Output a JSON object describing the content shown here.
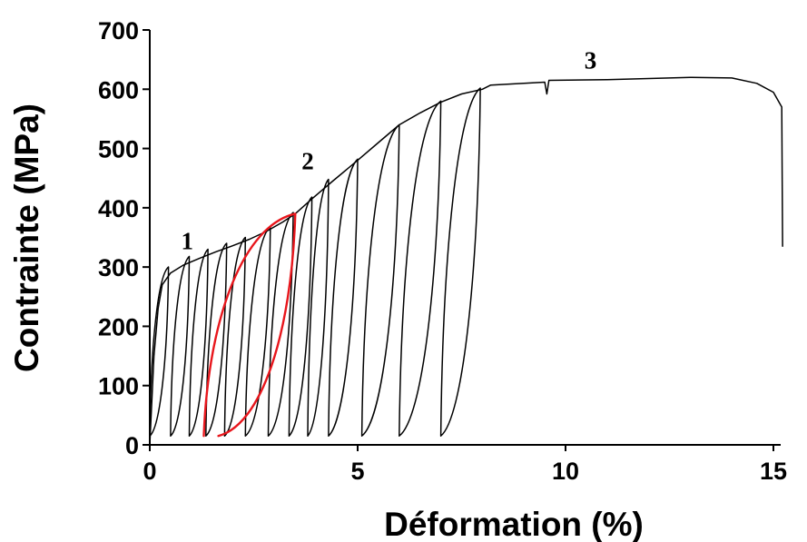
{
  "chart_data": {
    "type": "line",
    "xlabel": "Déformation (%)",
    "ylabel": "Contrainte (MPa)",
    "xlim": [
      0,
      15.2
    ],
    "ylim": [
      0,
      700
    ],
    "x_ticks": [
      0,
      5,
      10,
      15
    ],
    "y_ticks": [
      0,
      100,
      200,
      300,
      400,
      500,
      600,
      700
    ],
    "grid": false,
    "annotations": [
      {
        "text": "1",
        "x": 0.9,
        "y": 330
      },
      {
        "text": "2",
        "x": 3.8,
        "y": 465
      },
      {
        "text": "3",
        "x": 10.6,
        "y": 635
      }
    ],
    "envelope": [
      [
        0,
        0
      ],
      [
        0.1,
        150
      ],
      [
        0.2,
        230
      ],
      [
        0.3,
        270
      ],
      [
        0.5,
        290
      ],
      [
        0.8,
        303
      ],
      [
        1.2,
        315
      ],
      [
        1.6,
        326
      ],
      [
        2.0,
        336
      ],
      [
        2.4,
        347
      ],
      [
        2.8,
        360
      ],
      [
        3.2,
        376
      ],
      [
        3.5,
        390
      ],
      [
        3.9,
        415
      ],
      [
        4.4,
        445
      ],
      [
        5.0,
        480
      ],
      [
        5.5,
        510
      ],
      [
        6.0,
        540
      ],
      [
        6.5,
        560
      ],
      [
        7.0,
        578
      ],
      [
        7.5,
        592
      ],
      [
        8.0,
        600
      ],
      [
        8.2,
        607
      ],
      [
        9.5,
        612
      ],
      [
        9.55,
        592
      ],
      [
        9.6,
        615
      ],
      [
        11.0,
        616
      ],
      [
        13.0,
        620
      ],
      [
        14.0,
        619
      ],
      [
        14.6,
        610
      ],
      [
        15.0,
        595
      ],
      [
        15.2,
        570
      ],
      [
        15.22,
        335
      ]
    ],
    "loading_cycles": [
      {
        "peak": [
          0.45,
          300
        ],
        "min": [
          0.0,
          15
        ]
      },
      {
        "peak": [
          0.95,
          318
        ],
        "min": [
          0.5,
          15
        ]
      },
      {
        "peak": [
          1.4,
          330
        ],
        "min": [
          0.95,
          15
        ]
      },
      {
        "peak": [
          1.85,
          340
        ],
        "min": [
          1.35,
          15
        ]
      },
      {
        "peak": [
          2.3,
          350
        ],
        "min": [
          1.8,
          15
        ]
      },
      {
        "peak": [
          2.9,
          368
        ],
        "min": [
          2.3,
          15
        ]
      },
      {
        "peak": [
          3.45,
          392
        ],
        "min": [
          2.85,
          15
        ]
      },
      {
        "peak": [
          3.9,
          418
        ],
        "min": [
          3.35,
          15
        ]
      },
      {
        "peak": [
          4.3,
          448
        ],
        "min": [
          3.8,
          15
        ]
      },
      {
        "peak": [
          5.0,
          482
        ],
        "min": [
          4.3,
          15
        ]
      },
      {
        "peak": [
          6.0,
          540
        ],
        "min": [
          5.1,
          15
        ]
      },
      {
        "peak": [
          7.0,
          580
        ],
        "min": [
          6.0,
          15
        ]
      },
      {
        "peak": [
          7.95,
          602
        ],
        "min": [
          7.0,
          15
        ]
      }
    ],
    "highlighted_cycle": {
      "color": "#e8161c",
      "peak": [
        3.5,
        390
      ],
      "min": [
        1.3,
        15
      ],
      "unload_min": [
        1.65,
        15
      ]
    }
  }
}
